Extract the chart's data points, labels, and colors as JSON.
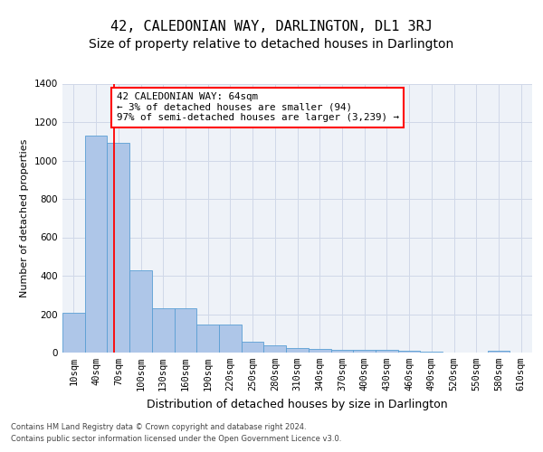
{
  "title": "42, CALEDONIAN WAY, DARLINGTON, DL1 3RJ",
  "subtitle": "Size of property relative to detached houses in Darlington",
  "xlabel": "Distribution of detached houses by size in Darlington",
  "ylabel": "Number of detached properties",
  "footer_line1": "Contains HM Land Registry data © Crown copyright and database right 2024.",
  "footer_line2": "Contains public sector information licensed under the Open Government Licence v3.0.",
  "categories": [
    "10sqm",
    "40sqm",
    "70sqm",
    "100sqm",
    "130sqm",
    "160sqm",
    "190sqm",
    "220sqm",
    "250sqm",
    "280sqm",
    "310sqm",
    "340sqm",
    "370sqm",
    "400sqm",
    "430sqm",
    "460sqm",
    "490sqm",
    "520sqm",
    "550sqm",
    "580sqm",
    "610sqm"
  ],
  "values": [
    205,
    1130,
    1090,
    430,
    230,
    230,
    145,
    145,
    55,
    40,
    25,
    20,
    15,
    15,
    15,
    10,
    5,
    0,
    0,
    10,
    0
  ],
  "bar_color": "#aec6e8",
  "bar_edge_color": "#5a9fd4",
  "grid_color": "#d0d8e8",
  "background_color": "#eef2f8",
  "property_line_label": "42 CALEDONIAN WAY: 64sqm",
  "annotation_line1": "← 3% of detached houses are smaller (94)",
  "annotation_line2": "97% of semi-detached houses are larger (3,239) →",
  "ylim": [
    0,
    1400
  ],
  "yticks": [
    0,
    200,
    400,
    600,
    800,
    1000,
    1200,
    1400
  ],
  "title_fontsize": 11,
  "subtitle_fontsize": 10,
  "xlabel_fontsize": 9,
  "ylabel_fontsize": 8,
  "tick_fontsize": 7.5,
  "footer_fontsize": 6
}
